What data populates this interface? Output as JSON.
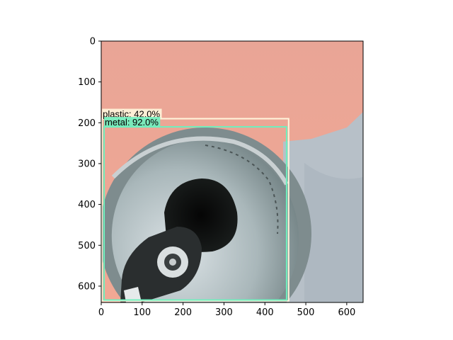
{
  "chart_data": {
    "type": "image",
    "xlim": [
      0,
      640
    ],
    "ylim": [
      640,
      0
    ],
    "xticks": [
      0,
      100,
      200,
      300,
      400,
      500,
      600
    ],
    "yticks": [
      0,
      100,
      200,
      300,
      400,
      500,
      600
    ],
    "grid": false,
    "image_content": "photo of an aluminium drink can top over a pink and light grey background",
    "detections": [
      {
        "label": "plastic: 42.0%",
        "class": "plastic",
        "score": 42.0,
        "box": {
          "x0": 2,
          "y0": 190,
          "x1": 458,
          "y1": 636
        },
        "color": "#FFF6DC"
      },
      {
        "label": "metal: 92.0%",
        "class": "metal",
        "score": 92.0,
        "box": {
          "x0": 7,
          "y0": 210,
          "x1": 453,
          "y1": 634
        },
        "color": "#6FF0BE"
      }
    ]
  }
}
